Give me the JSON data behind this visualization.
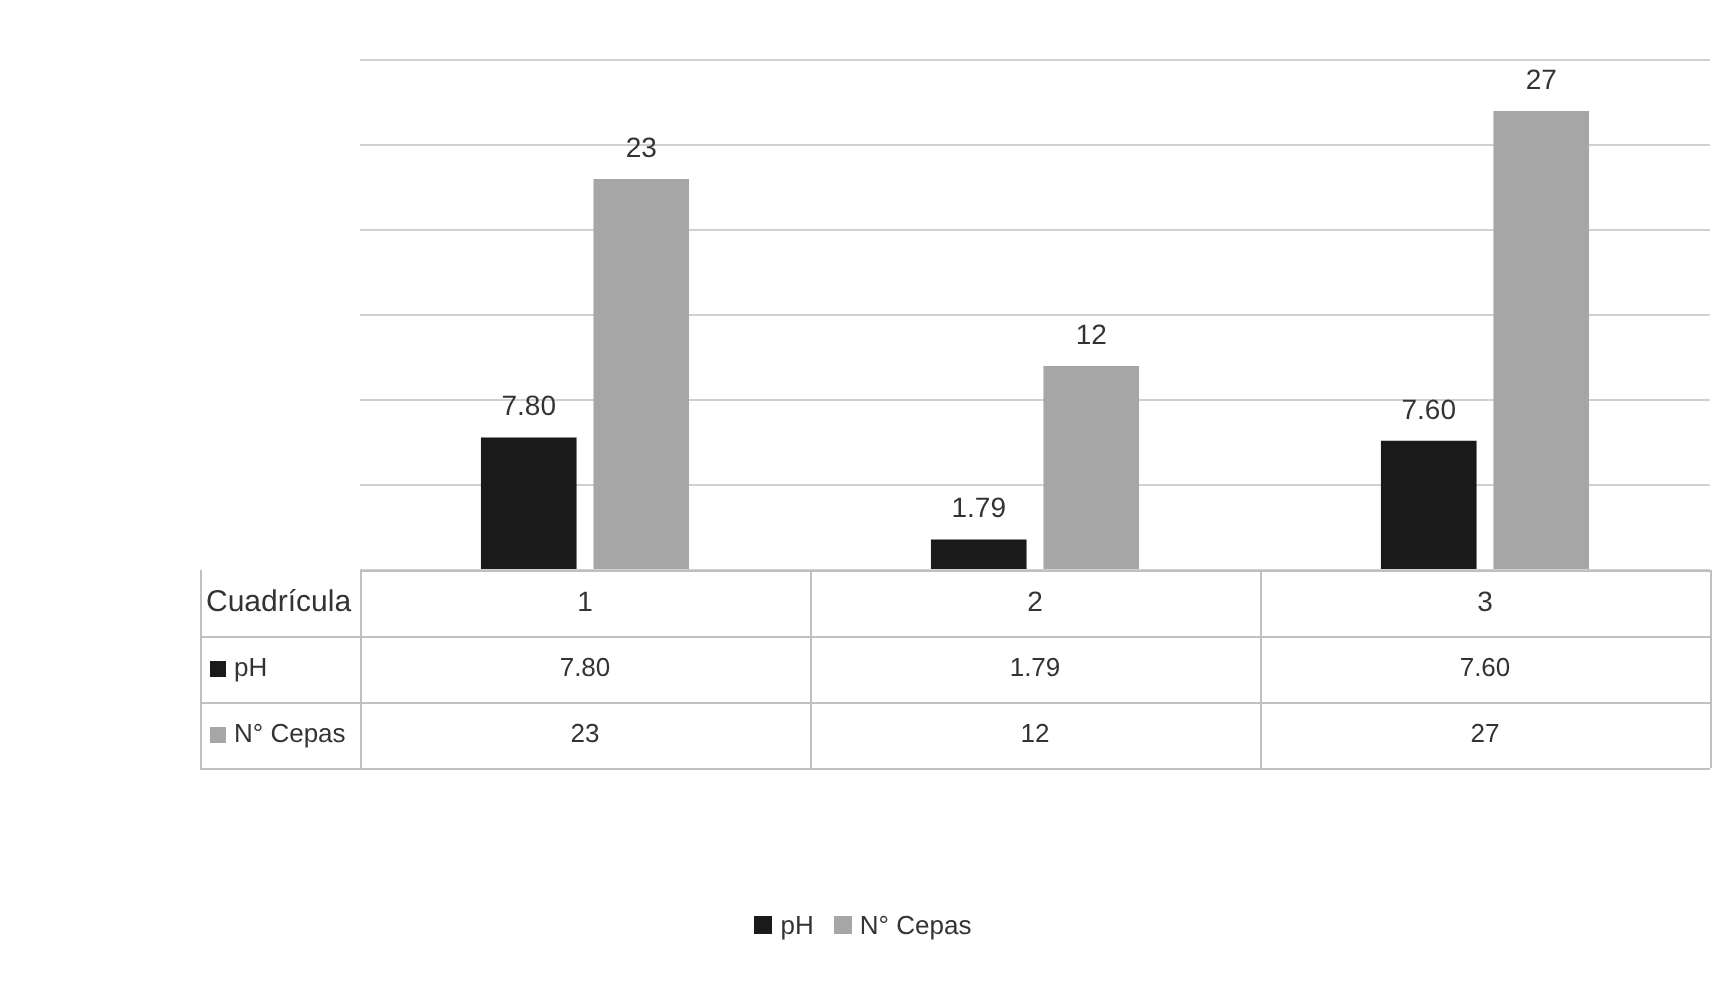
{
  "chart_data": {
    "type": "bar",
    "xlabel": "Cuadrícula",
    "categories": [
      "1",
      "2",
      "3"
    ],
    "series": [
      {
        "name": "pH",
        "color": "#1a1a1a",
        "values": [
          7.8,
          1.79,
          7.6
        ],
        "value_labels": [
          "7.80",
          "1.79",
          "7.60"
        ]
      },
      {
        "name": "N° Cepas",
        "color": "#a6a6a6",
        "values": [
          23,
          12,
          27
        ],
        "value_labels": [
          "23",
          "12",
          "27"
        ]
      }
    ],
    "ylim": [
      0,
      30
    ],
    "yticks": [
      {
        "value": 0,
        "label": null
      },
      {
        "value": 5,
        "label": null
      },
      {
        "value": 10,
        "label": null
      },
      {
        "value": 15,
        "label": null
      },
      {
        "value": 20,
        "label": null
      },
      {
        "value": 25,
        "label": null
      },
      {
        "value": 30,
        "label": null
      }
    ],
    "tick_labels": "x",
    "grid": "y",
    "legend": "bottom"
  }
}
